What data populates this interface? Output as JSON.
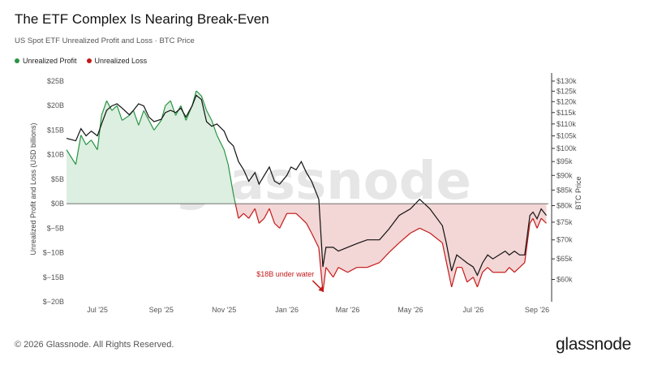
{
  "title": "The ETF Complex Is Nearing Break-Even",
  "subtitle": "US Spot ETF Unrealized Profit and Loss · BTC Price",
  "legend": {
    "profit": "Unrealized Profit",
    "loss": "Unrealized Loss"
  },
  "footer": "© 2026 Glassnode. All Rights Reserved.",
  "brand": "glassnode",
  "watermark": "glassnode",
  "colors": {
    "profit_line": "#2a9444",
    "profit_fill": "#dcefe0",
    "loss_line": "#c41a1a",
    "loss_fill": "#f3d6d6",
    "price_line": "#111111"
  },
  "chart_data": {
    "type": "line",
    "ylabel": "Unrealized Profit and Loss (USD billions)",
    "y2label": "BTC Price",
    "ylim": [
      -20,
      25
    ],
    "y2lim": [
      55000,
      130000
    ],
    "y2scale": "log",
    "xlim": [
      "2025-06-01",
      "2026-09-12"
    ],
    "x_ticks": [
      "Jul '25",
      "Sep '25",
      "Nov '25",
      "Jan '26",
      "Mar '26",
      "May '26",
      "Jul '26",
      "Sep '26"
    ],
    "y_ticks": [
      "$25B",
      "$20B",
      "$15B",
      "$10B",
      "$5B",
      "$0B",
      "$−5B",
      "$−10B",
      "$−15B",
      "$−20B"
    ],
    "y2_ticks": [
      "$130k",
      "$125k",
      "$120k",
      "$115k",
      "$110k",
      "$105k",
      "$100k",
      "$95k",
      "$90k",
      "$85k",
      "$80k",
      "$75k",
      "$70k",
      "$65k",
      "$60k"
    ],
    "annotation": {
      "text": "$18B under water",
      "x": "2026-02-06",
      "y": -18
    },
    "series": [
      {
        "name": "Unrealized Profit / Loss",
        "unit": "USD billions",
        "x": [
          "2025-06-01",
          "2025-06-10",
          "2025-06-15",
          "2025-06-20",
          "2025-06-25",
          "2025-07-01",
          "2025-07-05",
          "2025-07-10",
          "2025-07-15",
          "2025-07-20",
          "2025-07-25",
          "2025-08-01",
          "2025-08-05",
          "2025-08-10",
          "2025-08-15",
          "2025-08-20",
          "2025-08-25",
          "2025-09-01",
          "2025-09-05",
          "2025-09-10",
          "2025-09-15",
          "2025-09-20",
          "2025-09-25",
          "2025-10-01",
          "2025-10-05",
          "2025-10-10",
          "2025-10-15",
          "2025-10-20",
          "2025-10-25",
          "2025-11-01",
          "2025-11-05",
          "2025-11-10",
          "2025-11-15",
          "2025-11-20",
          "2025-11-25",
          "2025-12-01",
          "2025-12-05",
          "2025-12-10",
          "2025-12-15",
          "2025-12-20",
          "2025-12-25",
          "2026-01-01",
          "2026-01-05",
          "2026-01-10",
          "2026-01-15",
          "2026-01-20",
          "2026-01-25",
          "2026-02-01",
          "2026-02-05",
          "2026-02-08",
          "2026-02-15",
          "2026-02-20",
          "2026-03-01",
          "2026-03-10",
          "2026-03-20",
          "2026-04-01",
          "2026-04-10",
          "2026-04-20",
          "2026-05-01",
          "2026-05-10",
          "2026-05-20",
          "2026-06-01",
          "2026-06-05",
          "2026-06-10",
          "2026-06-15",
          "2026-06-20",
          "2026-06-25",
          "2026-07-01",
          "2026-07-05",
          "2026-07-10",
          "2026-07-15",
          "2026-07-20",
          "2026-08-01",
          "2026-08-05",
          "2026-08-10",
          "2026-08-15",
          "2026-08-20",
          "2026-08-25",
          "2026-08-28",
          "2026-09-01",
          "2026-09-05",
          "2026-09-10"
        ],
        "values": [
          11,
          8,
          14,
          12,
          13,
          11,
          18,
          21,
          19,
          20,
          17,
          18,
          19,
          16,
          19,
          17,
          15,
          17,
          20,
          21,
          18,
          20,
          17,
          20,
          23,
          22,
          19,
          17,
          14,
          11,
          8,
          2,
          -3,
          -2,
          -3,
          -1,
          -4,
          -3,
          -1,
          -4,
          -5,
          -2,
          -2,
          -2,
          -3,
          -4,
          -6,
          -9,
          -18,
          -13,
          -15,
          -13,
          -14,
          -13,
          -13,
          -12,
          -10,
          -8,
          -6,
          -5,
          -6,
          -8,
          -12,
          -17,
          -13,
          -13,
          -16,
          -15,
          -17,
          -14,
          -13,
          -14,
          -14,
          -13,
          -14,
          -13,
          -12,
          -4,
          -3,
          -5,
          -3,
          -4
        ]
      },
      {
        "name": "BTC Price",
        "unit": "USD",
        "x": [
          "2025-06-01",
          "2025-06-10",
          "2025-06-15",
          "2025-06-20",
          "2025-06-25",
          "2025-07-01",
          "2025-07-05",
          "2025-07-10",
          "2025-07-15",
          "2025-07-20",
          "2025-07-25",
          "2025-08-01",
          "2025-08-05",
          "2025-08-10",
          "2025-08-15",
          "2025-08-20",
          "2025-08-25",
          "2025-09-01",
          "2025-09-05",
          "2025-09-10",
          "2025-09-15",
          "2025-09-20",
          "2025-09-25",
          "2025-10-01",
          "2025-10-05",
          "2025-10-10",
          "2025-10-15",
          "2025-10-20",
          "2025-10-25",
          "2025-11-01",
          "2025-11-05",
          "2025-11-10",
          "2025-11-15",
          "2025-11-20",
          "2025-11-25",
          "2025-12-01",
          "2025-12-05",
          "2025-12-10",
          "2025-12-15",
          "2025-12-20",
          "2025-12-25",
          "2026-01-01",
          "2026-01-05",
          "2026-01-10",
          "2026-01-15",
          "2026-01-20",
          "2026-01-25",
          "2026-02-01",
          "2026-02-05",
          "2026-02-08",
          "2026-02-15",
          "2026-02-20",
          "2026-03-01",
          "2026-03-10",
          "2026-03-20",
          "2026-04-01",
          "2026-04-10",
          "2026-04-20",
          "2026-05-01",
          "2026-05-10",
          "2026-05-20",
          "2026-06-01",
          "2026-06-05",
          "2026-06-10",
          "2026-06-15",
          "2026-06-20",
          "2026-06-25",
          "2026-07-01",
          "2026-07-05",
          "2026-07-10",
          "2026-07-15",
          "2026-07-20",
          "2026-08-01",
          "2026-08-05",
          "2026-08-10",
          "2026-08-15",
          "2026-08-20",
          "2026-08-25",
          "2026-08-28",
          "2026-09-01",
          "2026-09-05",
          "2026-09-10"
        ],
        "values": [
          104000,
          103000,
          108000,
          105000,
          107000,
          105000,
          110000,
          116000,
          118000,
          119000,
          117000,
          114000,
          116000,
          119000,
          118000,
          113000,
          111000,
          112000,
          115000,
          116000,
          115000,
          117000,
          113000,
          118000,
          123000,
          121000,
          111000,
          109000,
          110000,
          107000,
          103000,
          101000,
          95000,
          92000,
          88000,
          91000,
          87000,
          90000,
          93000,
          88000,
          87000,
          90000,
          93000,
          92000,
          95000,
          91000,
          88000,
          82000,
          63000,
          68000,
          68000,
          67000,
          68000,
          69000,
          70000,
          70000,
          73000,
          77000,
          79000,
          82000,
          79000,
          74000,
          69000,
          62000,
          66000,
          65000,
          64000,
          63000,
          61000,
          64000,
          66000,
          65000,
          67000,
          66000,
          67000,
          66000,
          66000,
          77000,
          78000,
          76000,
          79000,
          77000
        ]
      }
    ]
  }
}
